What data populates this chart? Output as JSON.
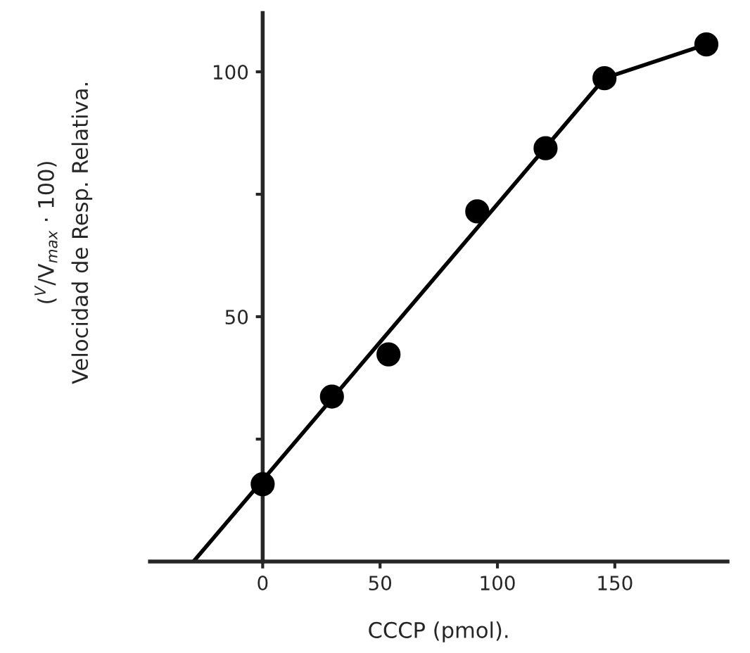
{
  "chart_data": {
    "type": "scatter",
    "xlabel": "CCCP (pmol).",
    "ylabel": "($^{V}$/V$_{max}$ · 100)\nVelocidad de Resp. Relativa.",
    "xlim": [
      -48,
      198
    ],
    "ylim": [
      0,
      112
    ],
    "xticks": [
      0,
      50,
      100,
      150
    ],
    "yticks": [
      {
        "value": 25,
        "label": null
      },
      50,
      {
        "value": 75,
        "label": null
      },
      100
    ],
    "grid": false,
    "legend": false,
    "series": [
      {
        "color": "#000000",
        "marker": "circle",
        "x": [
          0,
          29.5,
          53.6,
          91.4,
          120.5,
          145.6,
          189
        ],
        "values": [
          15.8,
          33.7,
          42.3,
          71.5,
          84.4,
          98.7,
          105.6
        ]
      },
      {
        "type": "line",
        "color": "#000000",
        "marker": "none",
        "line_style": "solid",
        "x": [
          -29.5,
          145.6,
          189
        ],
        "values": [
          0,
          98.7,
          105.6
        ]
      }
    ]
  }
}
